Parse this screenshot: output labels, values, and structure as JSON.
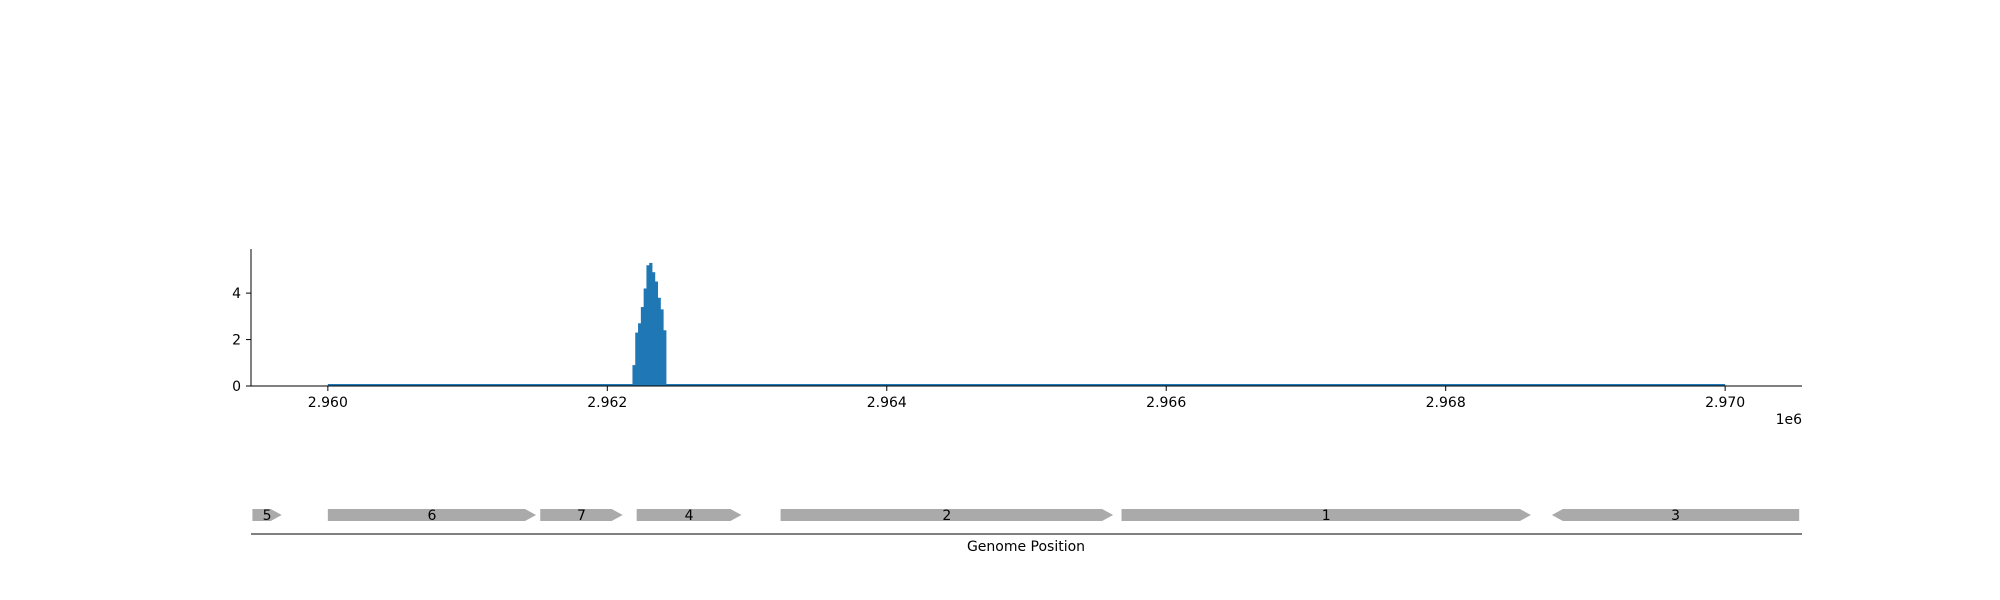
{
  "chart_data": [
    {
      "type": "area",
      "title": "",
      "xlabel": "",
      "ylabel": "",
      "x_offset_label": "1e6",
      "xlim": [
        2.95945,
        2.97055
      ],
      "ylim": [
        0,
        5.9
      ],
      "x_ticks": [
        2.96,
        2.962,
        2.964,
        2.966,
        2.968,
        2.97
      ],
      "x_tick_labels": [
        "2.960",
        "2.962",
        "2.964",
        "2.966",
        "2.968",
        "2.970"
      ],
      "y_ticks": [
        0,
        2,
        4
      ],
      "y_tick_labels": [
        "0",
        "2",
        "4"
      ],
      "baseline_range": [
        2.96,
        2.97
      ],
      "grid": false,
      "color": "#1f77b4",
      "series": [
        {
          "x": [
            2.96218,
            2.9622,
            2.96222,
            2.96224,
            2.96226,
            2.96228,
            2.9623,
            2.96232,
            2.96234,
            2.96236,
            2.96238,
            2.9624
          ],
          "y": [
            0.9,
            2.3,
            2.7,
            3.4,
            4.2,
            5.2,
            5.3,
            4.9,
            4.5,
            3.8,
            3.3,
            2.4
          ]
        }
      ]
    },
    {
      "type": "gene_track",
      "xlabel": "Genome Position",
      "color": "#aaaaaa",
      "genes": [
        {
          "label": "5",
          "start": 2.95946,
          "end": 2.95967,
          "strand": "+"
        },
        {
          "label": "6",
          "start": 2.96,
          "end": 2.96149,
          "strand": "+"
        },
        {
          "label": "7",
          "start": 2.96152,
          "end": 2.96211,
          "strand": "+"
        },
        {
          "label": "4",
          "start": 2.96221,
          "end": 2.96296,
          "strand": "+"
        },
        {
          "label": "2",
          "start": 2.96324,
          "end": 2.96562,
          "strand": "+"
        },
        {
          "label": "1",
          "start": 2.96568,
          "end": 2.96861,
          "strand": "+"
        },
        {
          "label": "3",
          "start": 2.96876,
          "end": 2.97053,
          "strand": "-"
        }
      ]
    }
  ]
}
